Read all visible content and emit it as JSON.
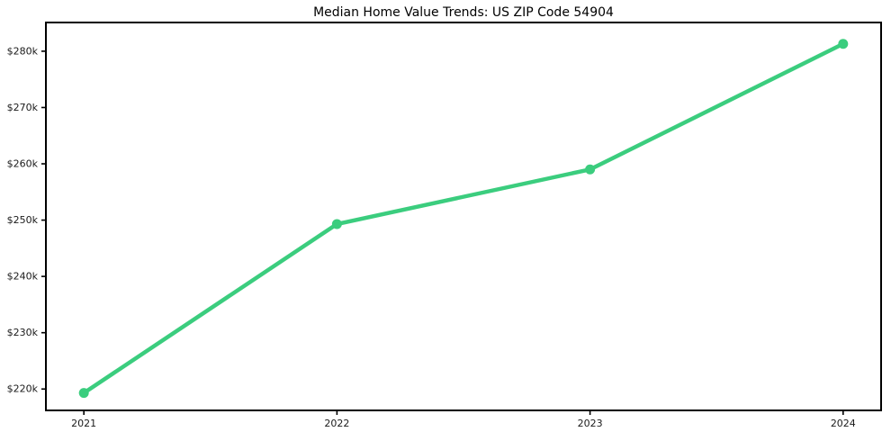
{
  "chart_data": {
    "type": "line",
    "title": "Median Home Value Trends: US ZIP Code 54904",
    "xlabel": "",
    "ylabel": "",
    "x": [
      2021,
      2022,
      2023,
      2024
    ],
    "x_tick_labels": [
      "2021",
      "2022",
      "2023",
      "2024"
    ],
    "y_ticks": [
      {
        "value": 220000,
        "label": "$220k"
      },
      {
        "value": 230000,
        "label": "$230k"
      },
      {
        "value": 240000,
        "label": "$240k"
      },
      {
        "value": 250000,
        "label": "$250k"
      },
      {
        "value": 260000,
        "label": "$260k"
      },
      {
        "value": 270000,
        "label": "$270k"
      },
      {
        "value": 280000,
        "label": "$280k"
      }
    ],
    "series": [
      {
        "values": [
          219300,
          249300,
          259000,
          281300
        ],
        "color": "#3bcd7e",
        "marker": "circle"
      }
    ],
    "xlim": [
      2020.85,
      2024.15
    ],
    "ylim": [
      216200,
      285100
    ],
    "grid": false,
    "legend": "none",
    "frame_color": "#000000",
    "background_color": "#ffffff"
  }
}
